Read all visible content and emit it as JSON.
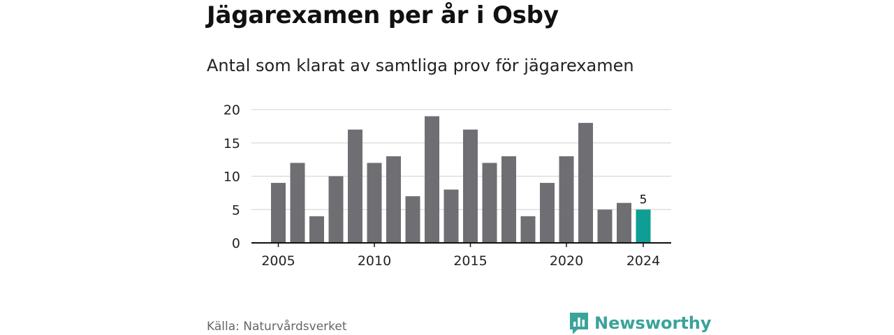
{
  "header": {
    "title": "Jägarexamen per år i Osby",
    "subtitle": "Antal som klarat av samtliga prov för jägarexamen"
  },
  "chart_data": {
    "type": "bar",
    "title": "Jägarexamen per år i Osby",
    "subtitle": "Antal som klarat av samtliga prov för jägarexamen",
    "xlabel": "",
    "ylabel": "",
    "categories": [
      2005,
      2006,
      2007,
      2008,
      2009,
      2010,
      2011,
      2012,
      2013,
      2014,
      2015,
      2016,
      2017,
      2018,
      2019,
      2020,
      2021,
      2022,
      2023,
      2024
    ],
    "values": [
      9,
      12,
      4,
      10,
      17,
      12,
      13,
      7,
      19,
      8,
      17,
      12,
      13,
      4,
      9,
      13,
      18,
      5,
      6,
      5
    ],
    "x_tick_labels": [
      "2005",
      "2010",
      "2015",
      "2020",
      "2024"
    ],
    "y_ticks": [
      0,
      5,
      10,
      15,
      20
    ],
    "ylim": [
      0,
      20
    ],
    "grid": true,
    "highlight": {
      "category": 2024,
      "label": "5"
    },
    "colors": {
      "bar": "#6f6e73",
      "highlight": "#0f9e93",
      "grid": "#d9d9d9",
      "axis": "#111111"
    }
  },
  "footer": {
    "source": "Källa: Naturvårdsverket",
    "brand": "Newsworthy",
    "brand_icon": "newsworthy-logo-icon"
  }
}
